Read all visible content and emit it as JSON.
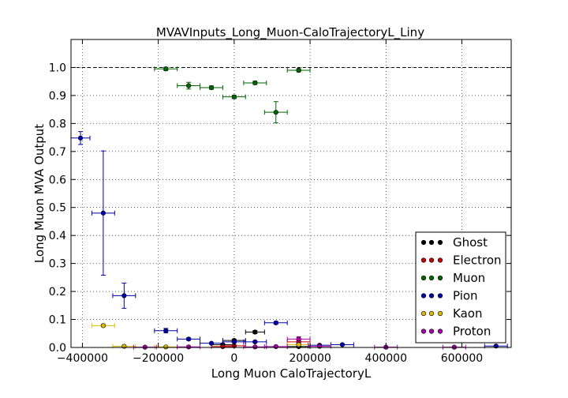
{
  "chart_data": {
    "type": "scatter",
    "title": "MVAVInputs_Long_Muon-CaloTrajectoryL_Liny",
    "xlabel": "Long Muon CaloTrajectoryL",
    "ylabel": "Long Muon MVA Output",
    "xlim": [
      -430000,
      730000
    ],
    "ylim": [
      0,
      1.1
    ],
    "xticks": [
      -400000,
      -200000,
      0,
      200000,
      400000,
      600000
    ],
    "xtick_labels": [
      "−400000",
      "−200000",
      "0",
      "200000",
      "400000",
      "600000"
    ],
    "yticks": [
      0.0,
      0.1,
      0.2,
      0.3,
      0.4,
      0.5,
      0.6,
      0.7,
      0.8,
      0.9,
      1.0
    ],
    "ytick_labels": [
      "0.0",
      "0.1",
      "0.2",
      "0.3",
      "0.4",
      "0.5",
      "0.6",
      "0.7",
      "0.8",
      "0.9",
      "1.0"
    ],
    "grid": true,
    "reference_line_y": 1.0,
    "legend_position": "lower-right",
    "series": [
      {
        "name": "Ghost",
        "color": "#000000",
        "points": [
          {
            "x": -30000,
            "y": 0.01,
            "xerr": 30000,
            "yerr": 0.003
          },
          {
            "x": 0,
            "y": 0.025,
            "xerr": 30000,
            "yerr": 0.004
          },
          {
            "x": 55000,
            "y": 0.055,
            "xerr": 25000,
            "yerr": 0.005
          },
          {
            "x": 170000,
            "y": 0.003,
            "xerr": 30000,
            "yerr": 0.002
          }
        ]
      },
      {
        "name": "Electron",
        "color": "#cc0000",
        "points": [
          {
            "x": -30000,
            "y": 0.003,
            "xerr": 30000,
            "yerr": 0.002
          },
          {
            "x": 0,
            "y": 0.006,
            "xerr": 30000,
            "yerr": 0.002
          },
          {
            "x": 170000,
            "y": 0.02,
            "xerr": 30000,
            "yerr": 0.004
          }
        ]
      },
      {
        "name": "Muon",
        "color": "#006600",
        "points": [
          {
            "x": -180000,
            "y": 0.995,
            "xerr": 30000,
            "yerr": 0.006
          },
          {
            "x": -120000,
            "y": 0.935,
            "xerr": 30000,
            "yerr": 0.012
          },
          {
            "x": -60000,
            "y": 0.928,
            "xerr": 30000,
            "yerr": 0.006
          },
          {
            "x": 0,
            "y": 0.895,
            "xerr": 30000,
            "yerr": 0.006
          },
          {
            "x": 55000,
            "y": 0.945,
            "xerr": 30000,
            "yerr": 0.006
          },
          {
            "x": 110000,
            "y": 0.84,
            "xerr": 30000,
            "yerr": 0.038
          },
          {
            "x": 170000,
            "y": 0.99,
            "xerr": 30000,
            "yerr": 0.006
          }
        ]
      },
      {
        "name": "Pion",
        "color": "#0000aa",
        "points": [
          {
            "x": -405000,
            "y": 0.748,
            "xerr": 25000,
            "yerr": 0.023
          },
          {
            "x": -345000,
            "y": 0.48,
            "xerr": 30000,
            "yerr": 0.222
          },
          {
            "x": -290000,
            "y": 0.185,
            "xerr": 30000,
            "yerr": 0.045
          },
          {
            "x": -180000,
            "y": 0.06,
            "xerr": 30000,
            "yerr": 0.008
          },
          {
            "x": -120000,
            "y": 0.03,
            "xerr": 30000,
            "yerr": 0.004
          },
          {
            "x": -60000,
            "y": 0.015,
            "xerr": 30000,
            "yerr": 0.002
          },
          {
            "x": 0,
            "y": 0.02,
            "xerr": 30000,
            "yerr": 0.003
          },
          {
            "x": 55000,
            "y": 0.02,
            "xerr": 30000,
            "yerr": 0.003
          },
          {
            "x": 110000,
            "y": 0.088,
            "xerr": 30000,
            "yerr": 0.005
          },
          {
            "x": 225000,
            "y": 0.008,
            "xerr": 30000,
            "yerr": 0.002
          },
          {
            "x": 285000,
            "y": 0.01,
            "xerr": 30000,
            "yerr": 0.002
          },
          {
            "x": 690000,
            "y": 0.005,
            "xerr": 30000,
            "yerr": 0.002
          }
        ]
      },
      {
        "name": "Kaon",
        "color": "#ddbb00",
        "points": [
          {
            "x": -345000,
            "y": 0.078,
            "xerr": 30000,
            "yerr": 0.004
          },
          {
            "x": -290000,
            "y": 0.004,
            "xerr": 30000,
            "yerr": 0.002
          },
          {
            "x": -180000,
            "y": 0.002,
            "xerr": 30000,
            "yerr": 0.002
          },
          {
            "x": 170000,
            "y": 0.01,
            "xerr": 30000,
            "yerr": 0.003
          }
        ]
      },
      {
        "name": "Proton",
        "color": "#aa00aa",
        "points": [
          {
            "x": -235000,
            "y": 0.001,
            "xerr": 30000,
            "yerr": 0.001
          },
          {
            "x": -120000,
            "y": 0.002,
            "xerr": 30000,
            "yerr": 0.001
          },
          {
            "x": 55000,
            "y": 0.002,
            "xerr": 30000,
            "yerr": 0.001
          },
          {
            "x": 110000,
            "y": 0.003,
            "xerr": 30000,
            "yerr": 0.001
          },
          {
            "x": 170000,
            "y": 0.03,
            "xerr": 30000,
            "yerr": 0.008
          },
          {
            "x": 225000,
            "y": 0.004,
            "xerr": 30000,
            "yerr": 0.002
          },
          {
            "x": 400000,
            "y": 0.001,
            "xerr": 30000,
            "yerr": 0.001
          },
          {
            "x": 580000,
            "y": 0.001,
            "xerr": 30000,
            "yerr": 0.001
          }
        ]
      }
    ]
  }
}
